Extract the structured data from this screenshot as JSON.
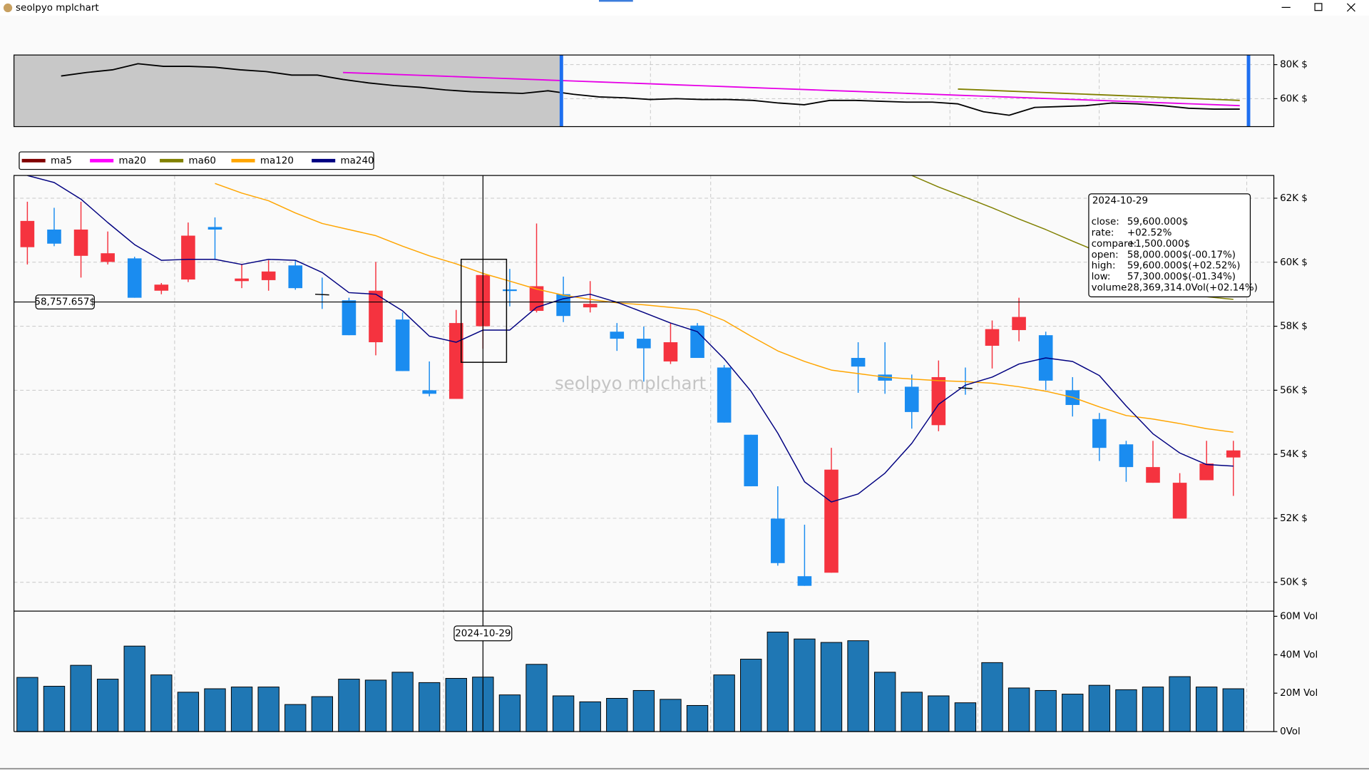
{
  "window": {
    "title": "seolpyo mplchart"
  },
  "chart_data": [
    {
      "type": "line",
      "series": [
        {
          "color": "#000000",
          "values": [
            73330,
            75380,
            76920,
            80510,
            78970,
            78970,
            78460,
            76920,
            75900,
            73850,
            73850,
            71280,
            69230,
            67690,
            66670,
            65130,
            64100,
            63590,
            63080,
            64620,
            62560,
            61030,
            60510,
            59490,
            60000,
            59490,
            59490,
            58970,
            57440,
            56410,
            58970,
            58970,
            58460,
            57950,
            57950,
            56920,
            52310,
            50260,
            54870,
            55380,
            55900,
            57440,
            56920,
            55900,
            54360,
            53850,
            53850
          ]
        },
        {
          "color": "#e600e6",
          "values": [
            null,
            null,
            null,
            null,
            null,
            null,
            null,
            null,
            null,
            null,
            null,
            75380,
            74820,
            74270,
            73710,
            73150,
            72600,
            72040,
            71480,
            70930,
            70370,
            69810,
            69260,
            68700,
            68140,
            67590,
            67030,
            66470,
            65920,
            65360,
            64800,
            64250,
            63690,
            63130,
            62580,
            62020,
            61460,
            60910,
            60350,
            59790,
            59240,
            58680,
            58120,
            57570,
            57010,
            56450,
            55900
          ]
        },
        {
          "color": "#808000",
          "values": [
            null,
            null,
            null,
            null,
            null,
            null,
            null,
            null,
            null,
            null,
            null,
            null,
            null,
            null,
            null,
            null,
            null,
            null,
            null,
            null,
            null,
            null,
            null,
            null,
            null,
            null,
            null,
            null,
            null,
            null,
            null,
            null,
            null,
            null,
            null,
            65640,
            65030,
            64430,
            63820,
            63210,
            62610,
            62000,
            61390,
            60790,
            60180,
            59580,
            58970
          ]
        }
      ],
      "ylim": [
        43590,
        85640
      ],
      "yticks": [
        {
          "value": 60000,
          "label": "60K $"
        },
        {
          "value": 80000,
          "label": "80K $"
        }
      ],
      "grid": true
    },
    {
      "type": "candlestick",
      "watermark": "seolpyo mplchart",
      "categories": [
        null,
        null,
        null,
        null,
        null,
        null,
        null,
        null,
        null,
        null,
        null,
        null,
        null,
        null,
        null,
        null,
        null,
        "2024-10-29",
        null,
        null,
        null,
        null,
        null,
        null,
        null,
        null,
        null,
        null,
        null,
        null,
        null,
        null,
        null,
        null,
        null,
        null,
        null,
        null,
        null,
        null,
        null,
        null,
        null,
        null,
        null,
        null
      ],
      "open": [
        60470,
        61020,
        60200,
        60010,
        60120,
        59110,
        59460,
        61100,
        59410,
        59440,
        59900,
        59000,
        58810,
        57500,
        58210,
        56000,
        55730,
        58000,
        59150,
        58480,
        59000,
        58590,
        57830,
        57610,
        56900,
        58020,
        56710,
        54610,
        51990,
        50190,
        50300,
        57010,
        56490,
        56110,
        54910,
        56080,
        57390,
        57880,
        57720,
        56000,
        55100,
        54310,
        53110,
        51990,
        53190,
        53900
      ],
      "high": [
        61890,
        61700,
        61890,
        60960,
        60170,
        59350,
        61240,
        61400,
        59950,
        60060,
        60060,
        59520,
        58890,
        60010,
        58430,
        56900,
        58510,
        59600,
        59790,
        61210,
        59550,
        59410,
        58100,
        57990,
        58100,
        58100,
        56790,
        54610,
        53000,
        51800,
        54200,
        57500,
        57500,
        56490,
        56930,
        56710,
        58180,
        58890,
        57830,
        56410,
        55290,
        54420,
        54420,
        53410,
        54420,
        54420
      ],
      "low": [
        59930,
        60500,
        59520,
        59930,
        58890,
        59000,
        59380,
        60090,
        59190,
        59110,
        59140,
        58540,
        57720,
        57090,
        56600,
        55810,
        55730,
        57300,
        58620,
        58430,
        58130,
        58430,
        57230,
        56270,
        56820,
        57010,
        54990,
        53000,
        50520,
        49890,
        50300,
        55920,
        55890,
        54800,
        54720,
        55860,
        56680,
        57530,
        56000,
        55180,
        53790,
        53140,
        53110,
        51990,
        53190,
        52700
      ],
      "close": [
        61290,
        60580,
        61020,
        60280,
        58890,
        59300,
        60830,
        61020,
        59490,
        59710,
        59190,
        58980,
        57720,
        59110,
        56600,
        55890,
        58100,
        59600,
        59100,
        59250,
        58320,
        58700,
        57610,
        57310,
        57500,
        57010,
        54990,
        53000,
        50600,
        49890,
        53520,
        56740,
        56300,
        55320,
        56410,
        56050,
        57910,
        58290,
        56300,
        55540,
        54200,
        53600,
        53600,
        53110,
        53710,
        54120
      ],
      "up_color": "#f5333f",
      "down_color": "#1a8cf0",
      "legend": [
        {
          "name": "ma5",
          "color": "#800000"
        },
        {
          "name": "ma20",
          "color": "#ff00ff"
        },
        {
          "name": "ma60",
          "color": "#808000"
        },
        {
          "name": "ma120",
          "color": "#ffa500"
        },
        {
          "name": "ma240",
          "color": "#000080"
        }
      ],
      "series": [
        {
          "color": "#808000",
          "values": [
            null,
            null,
            null,
            null,
            null,
            null,
            null,
            null,
            null,
            null,
            null,
            null,
            null,
            null,
            null,
            null,
            null,
            null,
            null,
            null,
            null,
            null,
            null,
            null,
            null,
            null,
            null,
            null,
            null,
            null,
            null,
            null,
            null,
            62710,
            62350,
            62030,
            61700,
            61350,
            61020,
            60660,
            60310,
            59950,
            59630,
            59300,
            58920,
            58840
          ]
        },
        {
          "color": "#ffa500",
          "values": [
            null,
            null,
            null,
            null,
            null,
            null,
            null,
            62460,
            62160,
            61920,
            61540,
            61210,
            61020,
            60830,
            60500,
            60200,
            59950,
            59650,
            59410,
            59160,
            58970,
            58840,
            58730,
            58670,
            58590,
            58510,
            58180,
            57690,
            57230,
            56900,
            56630,
            56520,
            56410,
            56350,
            56300,
            56270,
            56220,
            56110,
            55970,
            55780,
            55480,
            55210,
            55100,
            54960,
            54800,
            54690
          ]
        },
        {
          "color": "#000080",
          "values": [
            62710,
            62490,
            61970,
            61240,
            60550,
            60060,
            60090,
            60090,
            59930,
            60090,
            60060,
            59680,
            59050,
            59000,
            58480,
            57690,
            57500,
            57880,
            57880,
            58590,
            58860,
            59000,
            58750,
            58430,
            58100,
            57830,
            56980,
            55970,
            54660,
            53140,
            52510,
            52760,
            53410,
            54340,
            55560,
            56160,
            56410,
            56820,
            57010,
            56900,
            56460,
            55510,
            54640,
            54040,
            53680,
            53630
          ]
        }
      ],
      "ylim": [
        49100,
        62710
      ],
      "yticks": [
        {
          "value": 50000,
          "label": "50K $"
        },
        {
          "value": 52000,
          "label": "52K $"
        },
        {
          "value": 54000,
          "label": "54K $"
        },
        {
          "value": 56000,
          "label": "56K $"
        },
        {
          "value": 58000,
          "label": "58K $"
        },
        {
          "value": 60000,
          "label": "60K $"
        },
        {
          "value": 62000,
          "label": "62K $"
        }
      ],
      "grid": true,
      "crosshair": {
        "value": 58757.657,
        "label": "58,757.657$"
      },
      "tooltip": {
        "rows": [
          [
            "close:",
            "59,600.000$"
          ],
          [
            "rate:",
            "+02.52%"
          ],
          [
            "compare:",
            "+1,500.000$"
          ],
          [
            "open:",
            "58,000.000$(-00.17%)"
          ],
          [
            "high:",
            "59,600.000$(+02.52%)"
          ],
          [
            "low:",
            "57,300.000$(-01.34%)"
          ],
          [
            "volume:",
            "28,369,314.0Vol(+02.14%)"
          ]
        ]
      }
    },
    {
      "type": "bar",
      "values": [
        28200000,
        23600000,
        34500000,
        27300000,
        44500000,
        29500000,
        20500000,
        22300000,
        23200000,
        23200000,
        14100000,
        18200000,
        27300000,
        26800000,
        30900000,
        25500000,
        27700000,
        28369314,
        19100000,
        35000000,
        18600000,
        15500000,
        17300000,
        21400000,
        16800000,
        13600000,
        29500000,
        37700000,
        51800000,
        48200000,
        46400000,
        47300000,
        30900000,
        20500000,
        18600000,
        15000000,
        35900000,
        22700000,
        21400000,
        19500000,
        24100000,
        21800000,
        23200000,
        28600000,
        23200000,
        22300000
      ],
      "color": "#1f77b4",
      "ylim": [
        0,
        62700000
      ],
      "yticks": [
        {
          "value": 0,
          "label": "0Vol"
        },
        {
          "value": 20000000,
          "label": "20M Vol"
        },
        {
          "value": 40000000,
          "label": "40M Vol"
        },
        {
          "value": 60000000,
          "label": "60M Vol"
        }
      ],
      "grid": true
    }
  ]
}
